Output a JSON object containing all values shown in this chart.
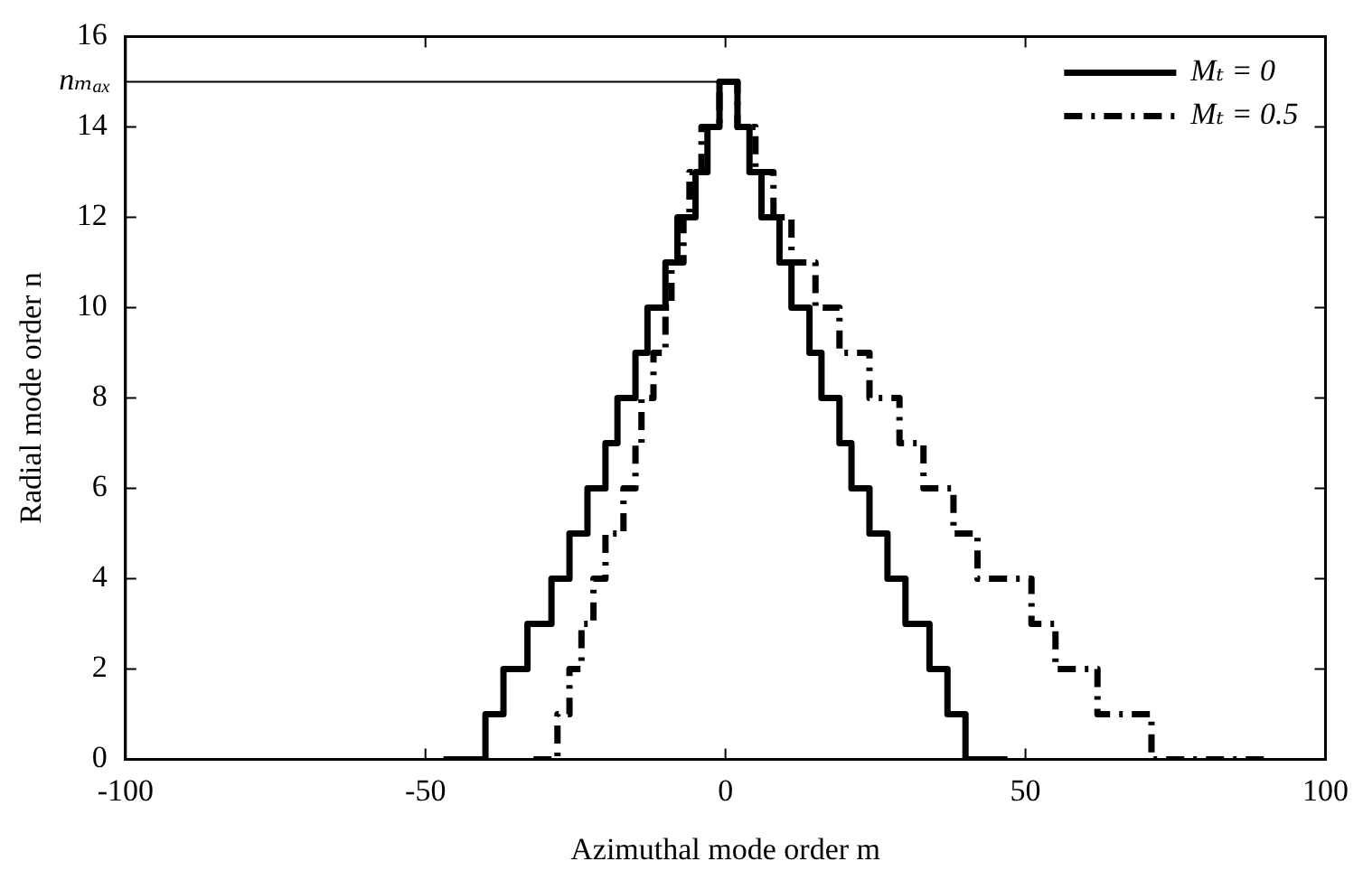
{
  "chart_data": {
    "type": "step",
    "xlabel": "Azimuthal mode order m",
    "ylabel": "Radial mode order n",
    "xlim": [
      -100,
      100
    ],
    "xticks": [
      -100,
      -50,
      0,
      50,
      100
    ],
    "ylim": [
      0,
      16
    ],
    "yticks": [
      0,
      2,
      4,
      6,
      8,
      10,
      12,
      14,
      16
    ],
    "grid": false,
    "legend": "top right",
    "marker": "none",
    "ref_lines": [
      {
        "axis": "y",
        "value": 15,
        "label": "nₘₐₓ",
        "color": "#000000"
      }
    ],
    "series": [
      {
        "name": "Mₜ = 0",
        "color": "#000000",
        "line_style": "solid",
        "x": [
          -47,
          -40,
          -37,
          -33,
          -29,
          -26,
          -23,
          -20,
          -18,
          -15,
          -13,
          -10,
          -8,
          -5,
          -3,
          -1,
          2,
          4,
          6,
          9,
          11,
          14,
          16,
          19,
          21,
          24,
          27,
          30,
          34,
          37,
          40,
          47
        ],
        "values": [
          0,
          1,
          2,
          3,
          4,
          5,
          6,
          7,
          8,
          9,
          10,
          11,
          12,
          13,
          14,
          15,
          14,
          13,
          12,
          11,
          10,
          9,
          8,
          7,
          6,
          5,
          4,
          3,
          2,
          1,
          0,
          0
        ]
      },
      {
        "name": "Mₜ = 0.5",
        "color": "#000000",
        "line_style": "dashed",
        "x": [
          -32,
          -28,
          -26,
          -24,
          -22,
          -20,
          -17,
          -15,
          -14,
          -12,
          -10,
          -9,
          -7,
          -6,
          -4,
          -1,
          2,
          5,
          8,
          11,
          15,
          19,
          24,
          29,
          33,
          38,
          42,
          51,
          55,
          62,
          71,
          90
        ],
        "values": [
          0,
          1,
          2,
          3,
          4,
          5,
          6,
          7,
          8,
          9,
          10,
          11,
          12,
          13,
          14,
          15,
          14,
          13,
          12,
          11,
          10,
          9,
          8,
          7,
          6,
          5,
          4,
          3,
          2,
          1,
          0,
          0
        ]
      }
    ]
  }
}
